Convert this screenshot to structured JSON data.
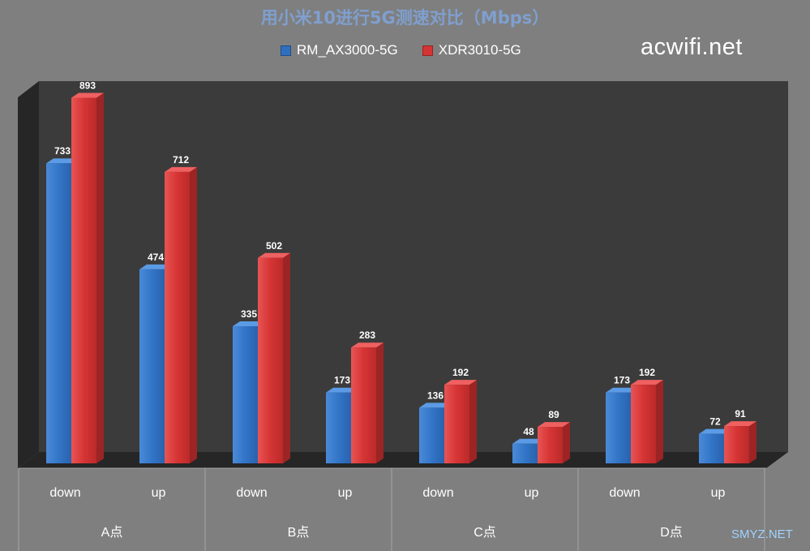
{
  "chart_data": {
    "type": "bar",
    "title": "用小米10进行5G测速对比（Mbps）",
    "groups": [
      "A点",
      "B点",
      "C点",
      "D点"
    ],
    "categories": [
      "down",
      "up",
      "down",
      "up",
      "down",
      "up",
      "down",
      "up"
    ],
    "series": [
      {
        "name": "RM_AX3000-5G",
        "color": "#2f6fbf",
        "values": [
          733,
          474,
          335,
          173,
          136,
          48,
          173,
          72
        ]
      },
      {
        "name": "XDR3010-5G",
        "color": "#d63434",
        "values": [
          893,
          712,
          502,
          283,
          192,
          89,
          192,
          91
        ]
      }
    ],
    "ylim": [
      0,
      900
    ],
    "grid": false,
    "legend_position": "top"
  },
  "watermark": "acwifi.net",
  "watermark2": "SMYZ.NET"
}
